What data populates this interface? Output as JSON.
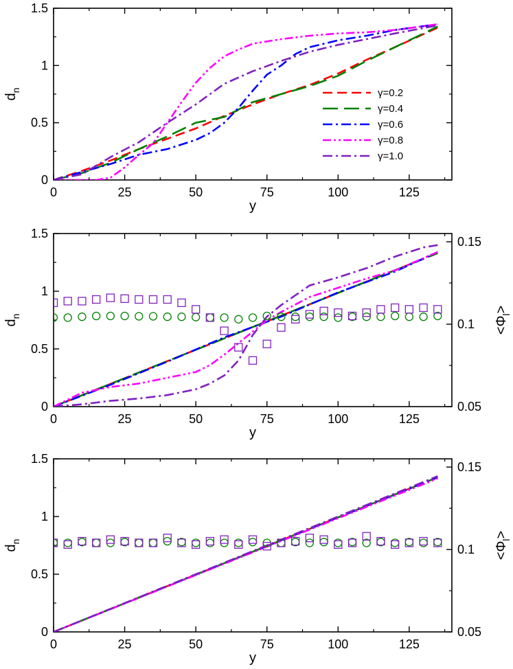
{
  "colors": {
    "g02": "#ff0000",
    "g04": "#008000",
    "g06": "#0000ff",
    "g08": "#ff00ff",
    "g10": "#8020c0",
    "axis": "#000000",
    "background": "#ffffff"
  },
  "chart_data": [
    {
      "type": "line",
      "panel": "top",
      "xlabel": "y",
      "ylabel": "d",
      "ylabel_sub": "n",
      "xlim": [
        0,
        140
      ],
      "ylim": [
        0,
        1.5
      ],
      "xticks": [
        0,
        25,
        50,
        75,
        100,
        125
      ],
      "yticks": [
        0,
        0.5,
        1,
        1.5
      ],
      "ytick_labels": [
        "0",
        "0.5",
        "1",
        "1.5"
      ],
      "legend_position": "right",
      "series": [
        {
          "name": "γ=0.2",
          "key": "g02",
          "dash": "dash",
          "x": [
            0,
            10,
            20,
            30,
            40,
            50,
            60,
            70,
            80,
            90,
            100,
            110,
            120,
            135
          ],
          "y": [
            0,
            0.08,
            0.17,
            0.27,
            0.36,
            0.45,
            0.56,
            0.66,
            0.75,
            0.83,
            0.93,
            1.05,
            1.16,
            1.33
          ]
        },
        {
          "name": "γ=0.4",
          "key": "g04",
          "dash": "longdash",
          "x": [
            0,
            10,
            20,
            30,
            40,
            50,
            60,
            70,
            80,
            90,
            100,
            110,
            120,
            135
          ],
          "y": [
            0,
            0.06,
            0.15,
            0.27,
            0.38,
            0.5,
            0.55,
            0.68,
            0.75,
            0.82,
            0.91,
            1.04,
            1.16,
            1.34
          ]
        },
        {
          "name": "γ=0.6",
          "key": "g06",
          "dash": "dashdot",
          "x": [
            0,
            10,
            20,
            30,
            40,
            50,
            55,
            60,
            65,
            70,
            75,
            80,
            85,
            90,
            100,
            110,
            120,
            135
          ],
          "y": [
            0,
            0.07,
            0.14,
            0.22,
            0.27,
            0.35,
            0.41,
            0.5,
            0.63,
            0.78,
            0.92,
            1.0,
            1.1,
            1.16,
            1.22,
            1.26,
            1.31,
            1.36
          ]
        },
        {
          "name": "γ=0.8",
          "key": "g08",
          "dash": "dashdotdot",
          "x": [
            0,
            10,
            15,
            20,
            25,
            30,
            35,
            40,
            45,
            50,
            55,
            60,
            65,
            70,
            75,
            80,
            90,
            100,
            110,
            120,
            135
          ],
          "y": [
            0,
            0,
            0,
            0.02,
            0.11,
            0.22,
            0.32,
            0.5,
            0.68,
            0.85,
            0.98,
            1.08,
            1.14,
            1.19,
            1.21,
            1.23,
            1.26,
            1.28,
            1.29,
            1.31,
            1.36
          ]
        },
        {
          "name": "γ=1.0",
          "key": "g10",
          "dash": "dashdot",
          "x": [
            0,
            10,
            20,
            30,
            40,
            50,
            60,
            70,
            80,
            90,
            100,
            110,
            120,
            135
          ],
          "y": [
            0,
            0.05,
            0.2,
            0.33,
            0.5,
            0.66,
            0.84,
            0.95,
            1.04,
            1.12,
            1.18,
            1.23,
            1.28,
            1.35
          ]
        }
      ]
    },
    {
      "type": "line",
      "panel": "middle",
      "xlabel": "y",
      "ylabel": "d",
      "ylabel_sub": "n",
      "y2label": "<Φ",
      "y2label_sub": "l",
      "y2label_end": ">",
      "xlim": [
        0,
        140
      ],
      "ylim": [
        0,
        1.5
      ],
      "y2lim": [
        0.05,
        0.155
      ],
      "xticks": [
        0,
        25,
        50,
        75,
        100,
        125
      ],
      "yticks": [
        0,
        0.5,
        1,
        1.5
      ],
      "ytick_labels": [
        "0",
        "0.5",
        "1",
        "1.5"
      ],
      "y2ticks": [
        0.05,
        0.1,
        0.15
      ],
      "y2tick_labels": [
        "0.05",
        "0.1",
        "0.15"
      ],
      "series": [
        {
          "name": "γ=0.2",
          "key": "g02",
          "dash": "dash",
          "x": [
            0,
            135
          ],
          "y": [
            0,
            1.33
          ]
        },
        {
          "name": "γ=0.4",
          "key": "g04",
          "dash": "longdash",
          "x": [
            0,
            135
          ],
          "y": [
            0,
            1.33
          ]
        },
        {
          "name": "γ=0.6",
          "key": "g06",
          "dash": "dashdot",
          "x": [
            0,
            20,
            40,
            60,
            80,
            100,
            120,
            135
          ],
          "y": [
            0,
            0.19,
            0.39,
            0.6,
            0.78,
            0.99,
            1.17,
            1.34
          ]
        },
        {
          "name": "γ=0.8",
          "key": "g08",
          "dash": "dashdotdot",
          "x": [
            0,
            10,
            20,
            30,
            40,
            50,
            55,
            60,
            65,
            70,
            75,
            80,
            90,
            100,
            110,
            120,
            135
          ],
          "y": [
            0,
            0.12,
            0.17,
            0.2,
            0.25,
            0.3,
            0.36,
            0.45,
            0.55,
            0.65,
            0.75,
            0.82,
            0.95,
            1.03,
            1.11,
            1.18,
            1.34
          ]
        },
        {
          "name": "γ=1.0",
          "key": "g10",
          "dash": "dashdot",
          "x": [
            0,
            10,
            20,
            30,
            40,
            50,
            55,
            60,
            65,
            70,
            75,
            80,
            90,
            100,
            110,
            120,
            130,
            135
          ],
          "y": [
            0,
            0.02,
            0.05,
            0.07,
            0.1,
            0.15,
            0.2,
            0.27,
            0.4,
            0.62,
            0.78,
            0.88,
            1.05,
            1.12,
            1.2,
            1.3,
            1.38,
            1.4
          ]
        }
      ],
      "markers": [
        {
          "shape": "circle",
          "key": "g04",
          "axis": "y2",
          "x": [
            0,
            5,
            10,
            15,
            20,
            25,
            30,
            35,
            40,
            45,
            50,
            55,
            60,
            65,
            70,
            75,
            80,
            85,
            90,
            95,
            100,
            105,
            110,
            115,
            120,
            125,
            130,
            135
          ],
          "y": [
            0.104,
            0.104,
            0.1045,
            0.105,
            0.105,
            0.105,
            0.1048,
            0.1048,
            0.1045,
            0.1045,
            0.1043,
            0.104,
            0.104,
            0.103,
            0.104,
            0.105,
            0.1045,
            0.1045,
            0.1045,
            0.1045,
            0.104,
            0.1045,
            0.1045,
            0.1045,
            0.105,
            0.1045,
            0.1045,
            0.105
          ]
        },
        {
          "shape": "square",
          "key": "g10",
          "axis": "y2",
          "x": [
            0,
            5,
            10,
            15,
            20,
            25,
            30,
            35,
            40,
            45,
            50,
            55,
            60,
            65,
            70,
            75,
            80,
            85,
            90,
            95,
            100,
            105,
            110,
            115,
            120,
            125,
            130,
            135
          ],
          "y": [
            0.113,
            0.114,
            0.114,
            0.115,
            0.116,
            0.1155,
            0.115,
            0.115,
            0.115,
            0.113,
            0.109,
            0.104,
            0.096,
            0.086,
            0.078,
            0.088,
            0.098,
            0.103,
            0.106,
            0.108,
            0.107,
            0.105,
            0.107,
            0.109,
            0.11,
            0.109,
            0.11,
            0.109
          ]
        }
      ]
    },
    {
      "type": "line",
      "panel": "bottom",
      "xlabel": "y",
      "ylabel": "d",
      "ylabel_sub": "n",
      "y2label": "<Φ",
      "y2label_sub": "l",
      "y2label_end": ">",
      "xlim": [
        0,
        140
      ],
      "ylim": [
        0,
        1.5
      ],
      "y2lim": [
        0.05,
        0.155
      ],
      "xticks": [
        0,
        25,
        50,
        75,
        100,
        125
      ],
      "yticks": [
        0,
        0.5,
        1,
        1.5
      ],
      "ytick_labels": [
        "0",
        "0.5",
        "1",
        "1.5"
      ],
      "y2ticks": [
        0.05,
        0.1,
        0.15
      ],
      "y2tick_labels": [
        "0.05",
        "0.1",
        "0.15"
      ],
      "series": [
        {
          "name": "γ=0.2",
          "key": "g02",
          "dash": "dash",
          "x": [
            0,
            135
          ],
          "y": [
            0,
            1.34
          ]
        },
        {
          "name": "γ=0.4",
          "key": "g04",
          "dash": "longdash",
          "x": [
            0,
            135
          ],
          "y": [
            0,
            1.34
          ]
        },
        {
          "name": "γ=0.6",
          "key": "g06",
          "dash": "dashdot",
          "x": [
            0,
            135
          ],
          "y": [
            0,
            1.34
          ]
        },
        {
          "name": "γ=0.8",
          "key": "g08",
          "dash": "dashdotdot",
          "x": [
            0,
            135
          ],
          "y": [
            0,
            1.33
          ]
        },
        {
          "name": "γ=1.0",
          "key": "g10",
          "dash": "dashdot",
          "x": [
            0,
            135
          ],
          "y": [
            0,
            1.35
          ]
        }
      ],
      "markers": [
        {
          "shape": "circle",
          "key": "g04",
          "axis": "y2",
          "x": [
            0,
            5,
            10,
            15,
            20,
            25,
            30,
            35,
            40,
            45,
            50,
            55,
            60,
            65,
            70,
            75,
            80,
            85,
            90,
            95,
            100,
            105,
            110,
            115,
            120,
            125,
            130,
            135
          ],
          "y": [
            0.104,
            0.104,
            0.1045,
            0.104,
            0.104,
            0.1045,
            0.104,
            0.104,
            0.105,
            0.1045,
            0.104,
            0.104,
            0.104,
            0.104,
            0.1045,
            0.104,
            0.104,
            0.1045,
            0.104,
            0.1045,
            0.104,
            0.1045,
            0.104,
            0.1045,
            0.104,
            0.1045,
            0.104,
            0.1045
          ]
        },
        {
          "shape": "square",
          "key": "g10",
          "axis": "y2",
          "x": [
            0,
            5,
            10,
            15,
            20,
            25,
            30,
            35,
            40,
            45,
            50,
            55,
            60,
            65,
            70,
            75,
            80,
            85,
            90,
            95,
            100,
            105,
            110,
            115,
            120,
            125,
            130,
            135
          ],
          "y": [
            0.104,
            0.103,
            0.105,
            0.104,
            0.106,
            0.105,
            0.104,
            0.104,
            0.107,
            0.104,
            0.103,
            0.105,
            0.106,
            0.103,
            0.106,
            0.102,
            0.104,
            0.105,
            0.107,
            0.106,
            0.103,
            0.104,
            0.108,
            0.105,
            0.103,
            0.104,
            0.105,
            0.104
          ]
        }
      ]
    }
  ]
}
